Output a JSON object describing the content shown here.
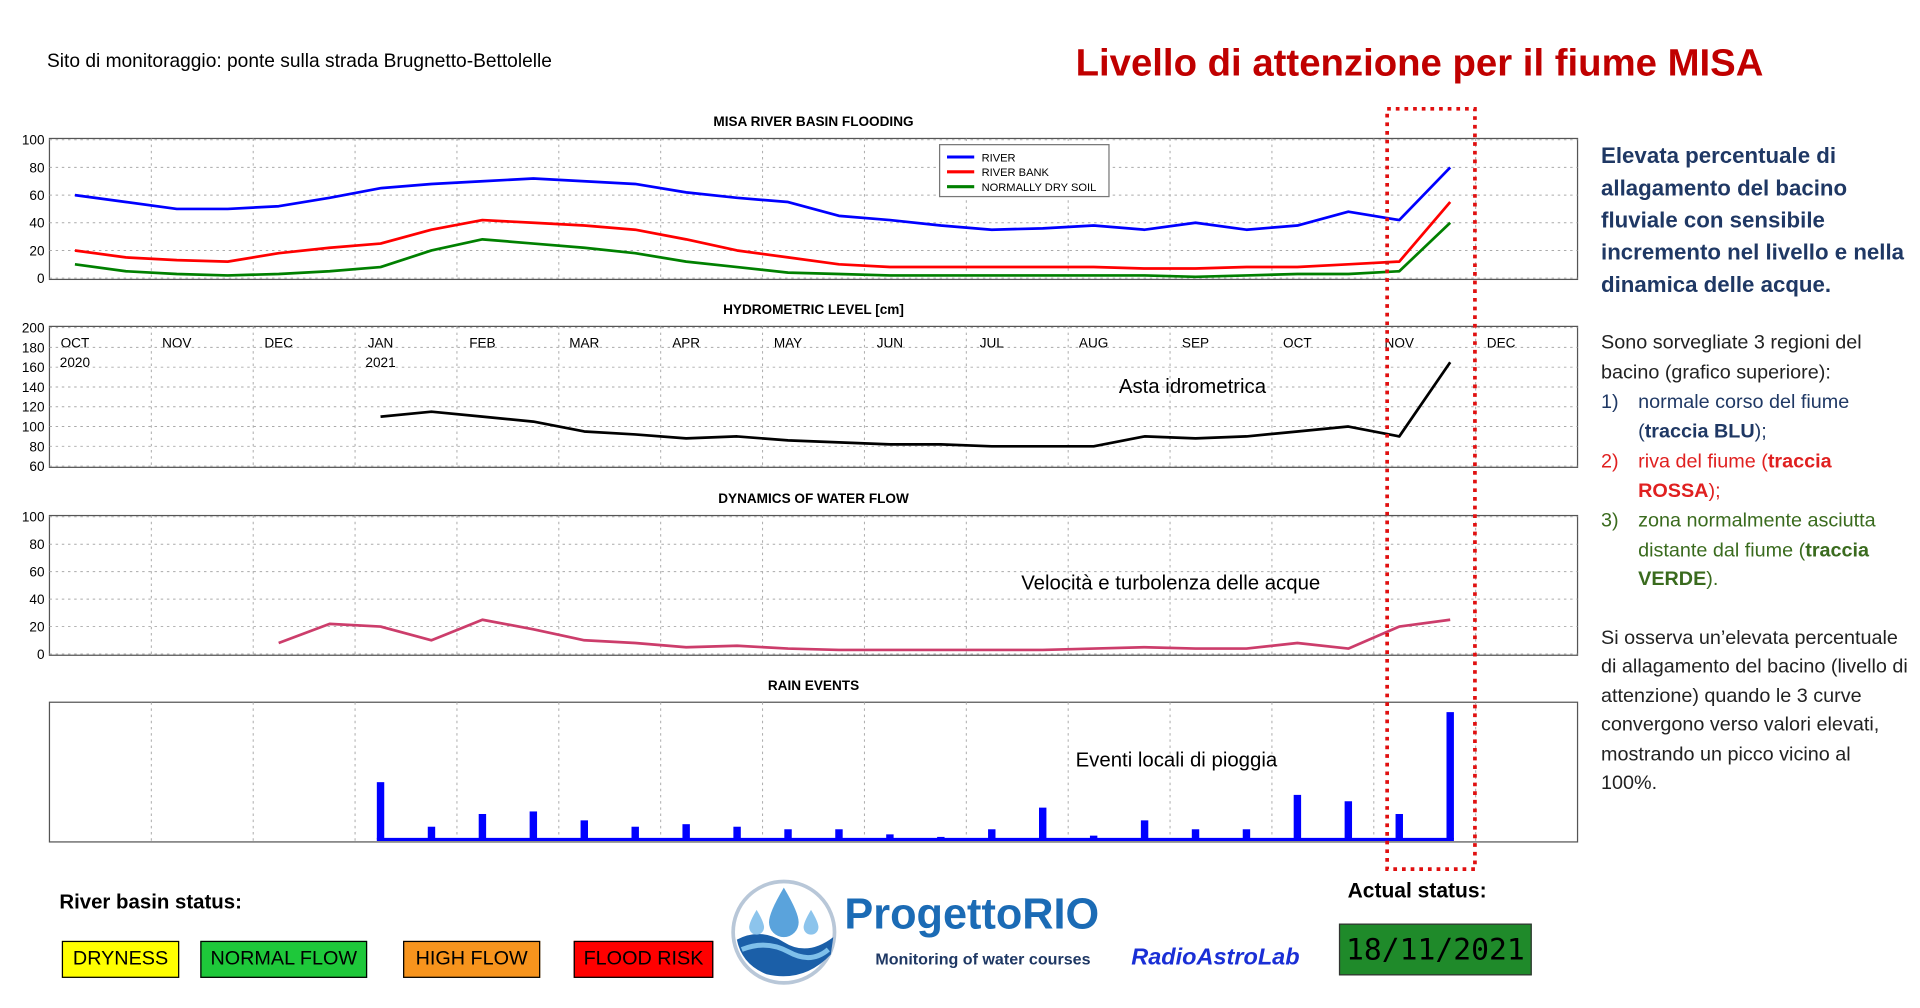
{
  "header": {
    "site": "Sito di monitoraggio: ponte sulla strada Brugnetto-Bettolelle",
    "title": "Livello di attenzione per il fiume MISA"
  },
  "notes": {
    "summary": "Elevata percentuale di allagamento del bacino fluviale con sensibile incremento nel livello e nella dinamica delle acque.",
    "intro": "Sono sorvegliate 3 regioni del bacino (grafico superiore):",
    "items": [
      {
        "num": "1)",
        "text": "normale corso del fiume (",
        "bold": "traccia BLU",
        "end": ");"
      },
      {
        "num": "2)",
        "text": "riva del fiume (",
        "bold": "traccia ROSSA",
        "end": ");"
      },
      {
        "num": "3)",
        "text": "zona normalmente asciutta distante dal fiume (",
        "bold": "traccia VERDE",
        "end": ")."
      }
    ],
    "closing": "Si osserva un’elevata percentuale di allagamento del bacino (livello di attenzione) quando le 3 curve convergono verso valori elevati, mostrando un picco vicino al 100%."
  },
  "status": {
    "label": "River basin status:",
    "levels": [
      "DRYNESS",
      "NORMAL FLOW",
      "HIGH FLOW",
      "FLOOD RISK"
    ],
    "colors": [
      "#ffff00",
      "#1ec83a",
      "#f7941d",
      "#ff0000"
    ],
    "actual_label": "Actual status:",
    "actual": "18/11/2021"
  },
  "logo": {
    "name": "ProgettoRIO",
    "tagline": "Monitoring of water courses",
    "brand": "RadioAstroLab"
  },
  "chart_data": [
    {
      "type": "line",
      "title": "MISA RIVER BASIN FLOODING",
      "ylim": [
        0,
        100
      ],
      "yticks": [
        0,
        20,
        40,
        60,
        80,
        100
      ],
      "grid": true,
      "legend": "top-center",
      "series": [
        {
          "name": "RIVER",
          "color": "#0000ff",
          "values": [
            60,
            55,
            50,
            50,
            52,
            58,
            65,
            68,
            70,
            72,
            70,
            68,
            62,
            58,
            55,
            45,
            42,
            38,
            35,
            36,
            38,
            35,
            40,
            35,
            38,
            48,
            42,
            80,
            null,
            null
          ]
        },
        {
          "name": "RIVER BANK",
          "color": "#ff0000",
          "values": [
            20,
            15,
            13,
            12,
            18,
            22,
            25,
            35,
            42,
            40,
            38,
            35,
            28,
            20,
            15,
            10,
            8,
            8,
            8,
            8,
            8,
            7,
            7,
            8,
            8,
            10,
            12,
            55,
            null,
            null
          ]
        },
        {
          "name": "NORMALLY DRY SOIL",
          "color": "#008000",
          "values": [
            10,
            5,
            3,
            2,
            3,
            5,
            8,
            20,
            28,
            25,
            22,
            18,
            12,
            8,
            4,
            3,
            2,
            2,
            2,
            2,
            2,
            2,
            1,
            2,
            3,
            3,
            5,
            40,
            null,
            null
          ]
        }
      ]
    },
    {
      "type": "line",
      "title": "HYDROMETRIC LEVEL [cm]",
      "ylim": [
        60,
        200
      ],
      "yticks": [
        60,
        80,
        100,
        120,
        140,
        160,
        180,
        200
      ],
      "grid": true,
      "categories": [
        "OCT",
        null,
        "NOV",
        null,
        "DEC",
        null,
        "JAN",
        null,
        "FEB",
        null,
        "MAR",
        null,
        "APR",
        null,
        "MAY",
        null,
        "JUN",
        null,
        "JUL",
        null,
        "AUG",
        null,
        "SEP",
        null,
        "OCT",
        null,
        "NOV",
        null,
        "DEC",
        null
      ],
      "category_years": [
        "2020",
        null,
        null,
        null,
        null,
        null,
        "2021",
        null,
        null,
        null,
        null,
        null,
        null,
        null,
        null,
        null,
        null,
        null,
        null,
        null,
        null,
        null,
        null,
        null,
        null,
        null,
        null,
        null,
        null,
        null
      ],
      "annotation": "Asta idrometrica",
      "series": [
        {
          "color": "#000000",
          "values": [
            null,
            null,
            null,
            null,
            null,
            null,
            110,
            115,
            110,
            105,
            95,
            92,
            88,
            90,
            86,
            84,
            82,
            82,
            80,
            80,
            80,
            90,
            88,
            90,
            95,
            100,
            90,
            165,
            null,
            null
          ]
        }
      ]
    },
    {
      "type": "line",
      "title": "DYNAMICS OF WATER FLOW",
      "ylim": [
        0,
        100
      ],
      "yticks": [
        0,
        20,
        40,
        60,
        80,
        100
      ],
      "grid": true,
      "annotation": "Velocità e turbolenza delle acque",
      "series": [
        {
          "color": "#cc3d6b",
          "values": [
            null,
            null,
            null,
            null,
            8,
            22,
            20,
            10,
            25,
            18,
            10,
            8,
            5,
            6,
            4,
            3,
            3,
            3,
            3,
            3,
            4,
            5,
            4,
            4,
            8,
            4,
            20,
            25,
            null,
            null
          ]
        }
      ]
    },
    {
      "type": "bar",
      "title": "RAIN EVENTS",
      "grid": true,
      "annotation": "Eventi locali di pioggia",
      "color": "#0000ff",
      "values": [
        null,
        null,
        null,
        null,
        null,
        null,
        45,
        10,
        20,
        22,
        15,
        10,
        12,
        10,
        8,
        8,
        4,
        2,
        8,
        25,
        3,
        15,
        8,
        8,
        35,
        30,
        20,
        100,
        null,
        null
      ]
    }
  ]
}
